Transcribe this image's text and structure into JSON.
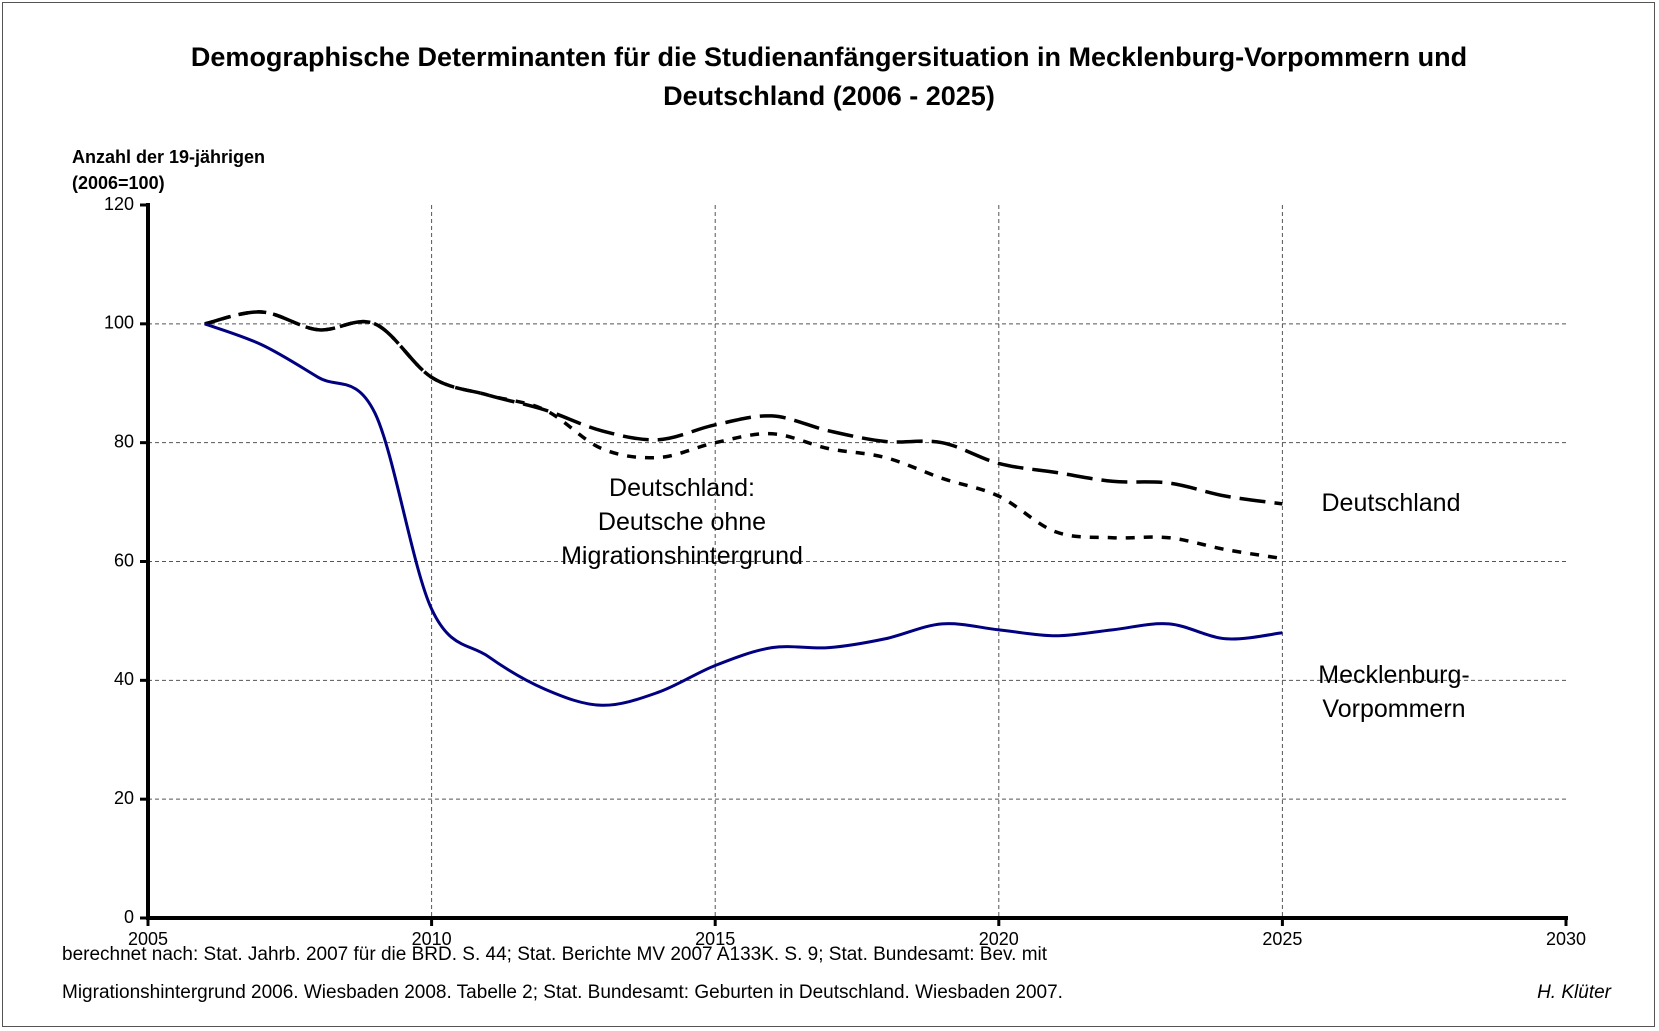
{
  "chart_data": {
    "type": "line",
    "title": "Demographische Determinanten für die Studienanfängersituation  in Mecklenburg-Vorpommern und Deutschland (2006 - 2025)",
    "y_label": "Anzahl der 19-jährigen (2006=100)",
    "x": [
      2006,
      2007,
      2008,
      2009,
      2010,
      2011,
      2012,
      2013,
      2014,
      2015,
      2016,
      2017,
      2018,
      2019,
      2020,
      2021,
      2022,
      2023,
      2024,
      2025
    ],
    "series": [
      {
        "name": "Deutschland",
        "color": "#000000",
        "dash": "dashed",
        "values": [
          100,
          102,
          99,
          100,
          91,
          88,
          85.5,
          82,
          80.5,
          83,
          84.5,
          82,
          80.2,
          80,
          76.5,
          75,
          73.5,
          73.2,
          71,
          69.7
        ]
      },
      {
        "name": "Deutschland: Deutsche ohne Migrationshintergrund",
        "color": "#000000",
        "dash": "dotted",
        "values": [
          100,
          102,
          99,
          100,
          91,
          88,
          85.5,
          79,
          77.5,
          80,
          81.5,
          79,
          77.5,
          74,
          71,
          65,
          64,
          64,
          62,
          60.5
        ]
      },
      {
        "name": "Mecklenburg-Vorpommern",
        "color": "#000080",
        "dash": "solid",
        "values": [
          100,
          96.5,
          91,
          85,
          52,
          44,
          38.5,
          35.8,
          38,
          42.5,
          45.5,
          45.5,
          47,
          49.5,
          48.5,
          47.5,
          48.5,
          49.5,
          47,
          48
        ]
      }
    ],
    "xlim": [
      2005,
      2030
    ],
    "xticks": [
      2005,
      2010,
      2015,
      2020,
      2025,
      2030
    ],
    "ylim": [
      0,
      120
    ],
    "yticks": [
      0,
      20,
      40,
      60,
      80,
      100,
      120
    ],
    "grid": true,
    "source": [
      "berechnet nach: Stat. Jahrb. 2007 für die BRD. S. 44; Stat. Berichte MV 2007 A133K. S. 9; Stat. Bundesamt: Bev. mit",
      "Migrationshintergrund 2006. Wiesbaden 2008. Tabelle 2; Stat. Bundesamt: Geburten in Deutschland. Wiesbaden 2007."
    ],
    "author": "H. Klüter"
  }
}
